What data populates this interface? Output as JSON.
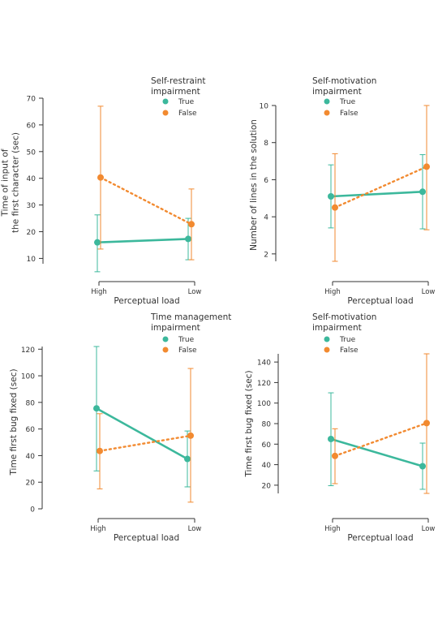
{
  "colors": {
    "true": "#3cb89c",
    "false": "#f28a30",
    "axis": "#333333"
  },
  "legend_entries": [
    "True",
    "False"
  ],
  "chart_data": [
    {
      "type": "line",
      "legend_title": [
        "Self-restraint",
        "impairment"
      ],
      "ylabel": [
        "Time of input of",
        "the first character (sec)"
      ],
      "xlabel": "Perceptual load",
      "categories": [
        "High",
        "Low"
      ],
      "ylim": [
        8,
        70
      ],
      "yticks": [
        10,
        20,
        30,
        40,
        50,
        60,
        70
      ],
      "series": [
        {
          "name": "True",
          "values": [
            16,
            17.3
          ],
          "err_low": [
            5,
            9.5
          ],
          "err_high": [
            26.3,
            25
          ]
        },
        {
          "name": "False",
          "values": [
            40.3,
            22.8
          ],
          "err_low": [
            13.5,
            9.5
          ],
          "err_high": [
            67,
            36
          ]
        }
      ]
    },
    {
      "type": "line",
      "legend_title": [
        "Self-motivation",
        "impairment"
      ],
      "ylabel": [
        "Number of lines in the solution"
      ],
      "xlabel": "Perceptual load",
      "categories": [
        "High",
        "Low"
      ],
      "ylim": [
        1.6,
        10
      ],
      "yticks": [
        2,
        4,
        6,
        8,
        10
      ],
      "series": [
        {
          "name": "True",
          "values": [
            5.1,
            5.35
          ],
          "err_low": [
            3.4,
            3.35
          ],
          "err_high": [
            6.8,
            7.35
          ]
        },
        {
          "name": "False",
          "values": [
            4.5,
            6.7
          ],
          "err_low": [
            1.6,
            3.3
          ],
          "err_high": [
            7.4,
            10
          ]
        }
      ]
    },
    {
      "type": "line",
      "legend_title": [
        "Time management",
        "impairment"
      ],
      "ylabel": [
        "Time first bug fixed (sec)"
      ],
      "xlabel": "Perceptual load",
      "categories": [
        "High",
        "Low"
      ],
      "ylim": [
        0,
        122
      ],
      "yticks": [
        0,
        20,
        40,
        60,
        80,
        100,
        120
      ],
      "series": [
        {
          "name": "True",
          "values": [
            75.5,
            37.5
          ],
          "err_low": [
            28.5,
            16.5
          ],
          "err_high": [
            122,
            58.5
          ]
        },
        {
          "name": "False",
          "values": [
            43.5,
            55
          ],
          "err_low": [
            15,
            5
          ],
          "err_high": [
            71.5,
            105.5
          ]
        }
      ]
    },
    {
      "type": "line",
      "legend_title": [
        "Self-motivation",
        "impairment"
      ],
      "ylabel": [
        "Time first bug fixed (sec)"
      ],
      "xlabel": "Perceptual load",
      "categories": [
        "High",
        "Low"
      ],
      "ylim": [
        12,
        148
      ],
      "yticks": [
        20,
        40,
        60,
        80,
        100,
        120,
        140
      ],
      "series": [
        {
          "name": "True",
          "values": [
            65,
            38.5
          ],
          "err_low": [
            19.5,
            16
          ],
          "err_high": [
            110,
            61
          ]
        },
        {
          "name": "False",
          "values": [
            48.5,
            80.5
          ],
          "err_low": [
            21.5,
            12
          ],
          "err_high": [
            75,
            148
          ]
        }
      ]
    }
  ]
}
